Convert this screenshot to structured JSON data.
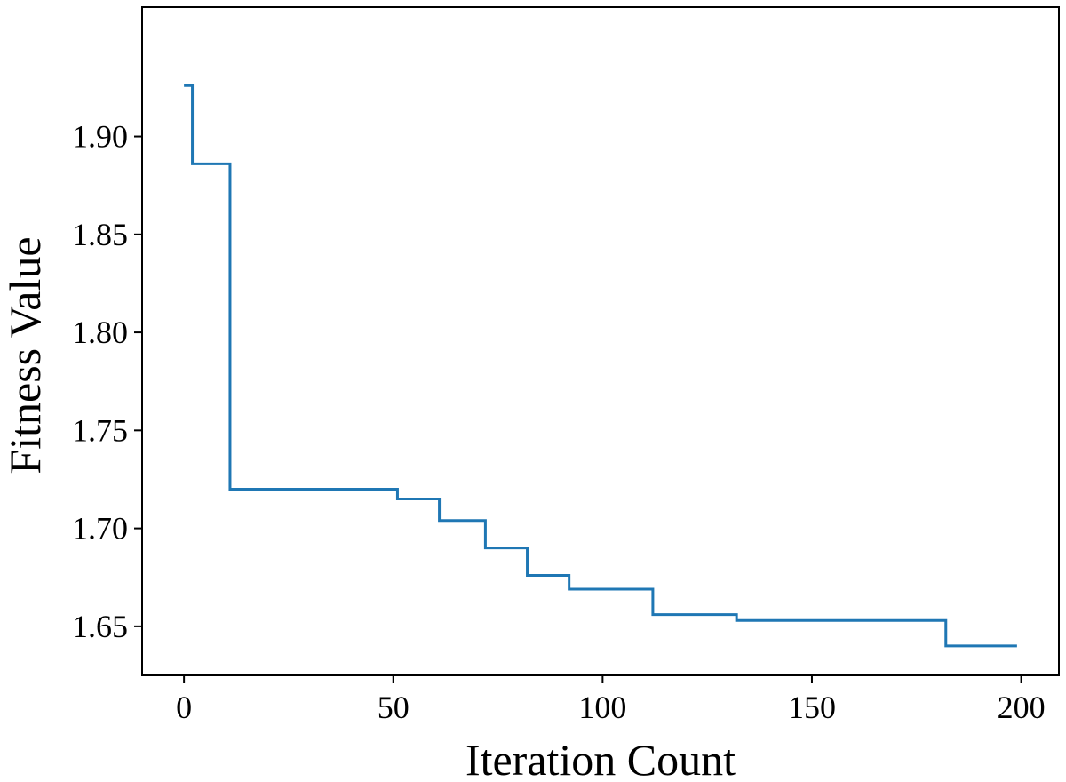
{
  "chart_data": {
    "type": "line",
    "title": "",
    "xlabel": "Iteration Count",
    "ylabel": "Fitness Value",
    "xlim": [
      -10,
      209
    ],
    "ylim": [
      1.625,
      1.966
    ],
    "xticks": [
      0,
      50,
      100,
      150,
      200
    ],
    "xtick_labels": [
      "0",
      "50",
      "100",
      "150",
      "200"
    ],
    "yticks": [
      1.65,
      1.7,
      1.75,
      1.8,
      1.85,
      1.9
    ],
    "ytick_labels": [
      "1.65",
      "1.70",
      "1.75",
      "1.80",
      "1.85",
      "1.90"
    ],
    "grid": false,
    "line_color": "#1f77b4",
    "series": [
      {
        "step": "post",
        "x": [
          0,
          2,
          11,
          51,
          61,
          72,
          82,
          92,
          112,
          132,
          182,
          199
        ],
        "y": [
          1.926,
          1.886,
          1.72,
          1.715,
          1.704,
          1.69,
          1.676,
          1.669,
          1.656,
          1.653,
          1.64,
          1.64
        ]
      }
    ]
  }
}
